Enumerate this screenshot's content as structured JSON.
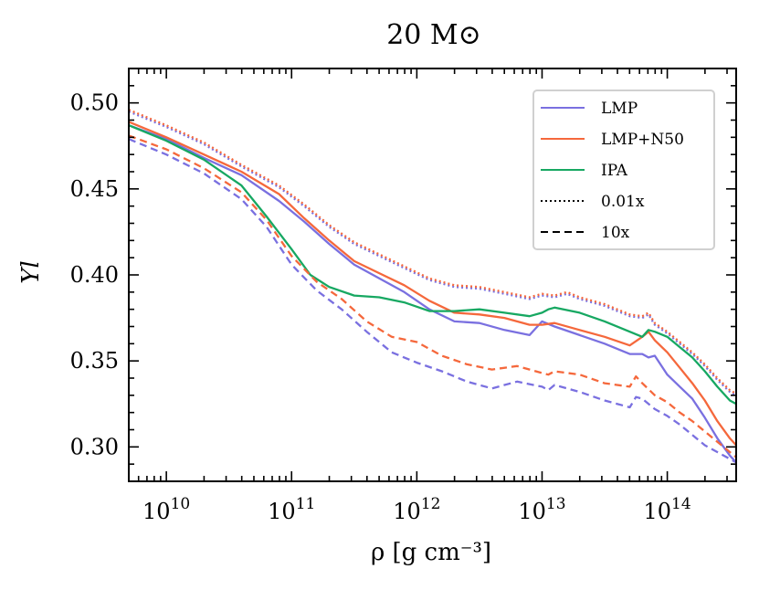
{
  "chart_data": {
    "type": "line",
    "title": "20 M⊙",
    "xlabel": "ρ [g cm⁻³]",
    "ylabel": "Yl",
    "x_scale": "log",
    "xlim_log10": [
      9.7,
      14.55
    ],
    "ylim": [
      0.28,
      0.52
    ],
    "x_tick_labels": [
      {
        "log10": 10,
        "base": "10",
        "exp": "10"
      },
      {
        "log10": 11,
        "base": "10",
        "exp": "11"
      },
      {
        "log10": 12,
        "base": "10",
        "exp": "12"
      },
      {
        "log10": 13,
        "base": "10",
        "exp": "13"
      },
      {
        "log10": 14,
        "base": "10",
        "exp": "14"
      }
    ],
    "y_ticks": [
      0.3,
      0.35,
      0.4,
      0.45,
      0.5
    ],
    "y_tick_labels": [
      "0.30",
      "0.35",
      "0.40",
      "0.45",
      "0.50"
    ],
    "grid": false,
    "legend": {
      "position": "top-right",
      "entries": [
        {
          "label": "LMP",
          "color": "#7a70e0",
          "dash": "solid"
        },
        {
          "label": "LMP+N50",
          "color": "#f5683c",
          "dash": "solid"
        },
        {
          "label": "IPA",
          "color": "#17a862",
          "dash": "solid"
        },
        {
          "label": "0.01x",
          "color": "#000000",
          "dash": "dotted"
        },
        {
          "label": "10x",
          "color": "#000000",
          "dash": "dashed"
        }
      ]
    },
    "series": [
      {
        "model": "LMP",
        "variant": "1x",
        "color": "#7a70e0",
        "dash": "solid",
        "log10_x": [
          9.7,
          10.0,
          10.3,
          10.6,
          10.9,
          11.1,
          11.3,
          11.5,
          11.7,
          11.9,
          12.1,
          12.3,
          12.5,
          12.7,
          12.9,
          13.0,
          13.1,
          13.3,
          13.5,
          13.7,
          13.8,
          13.85,
          13.9,
          14.0,
          14.1,
          14.2,
          14.3,
          14.4,
          14.5,
          14.55
        ],
        "y": [
          0.487,
          0.479,
          0.468,
          0.458,
          0.443,
          0.431,
          0.418,
          0.406,
          0.398,
          0.39,
          0.38,
          0.373,
          0.372,
          0.368,
          0.365,
          0.373,
          0.37,
          0.365,
          0.36,
          0.354,
          0.354,
          0.352,
          0.353,
          0.342,
          0.335,
          0.328,
          0.317,
          0.305,
          0.295,
          0.291
        ]
      },
      {
        "model": "LMP+N50",
        "variant": "1x",
        "color": "#f5683c",
        "dash": "solid",
        "log10_x": [
          9.7,
          10.0,
          10.3,
          10.6,
          10.9,
          11.1,
          11.3,
          11.5,
          11.7,
          11.9,
          12.1,
          12.3,
          12.5,
          12.7,
          12.9,
          13.0,
          13.1,
          13.3,
          13.5,
          13.7,
          13.8,
          13.85,
          13.9,
          14.0,
          14.1,
          14.2,
          14.3,
          14.4,
          14.5,
          14.55
        ],
        "y": [
          0.489,
          0.48,
          0.47,
          0.46,
          0.447,
          0.433,
          0.42,
          0.408,
          0.401,
          0.394,
          0.385,
          0.378,
          0.377,
          0.375,
          0.371,
          0.371,
          0.372,
          0.368,
          0.364,
          0.359,
          0.364,
          0.367,
          0.362,
          0.355,
          0.346,
          0.337,
          0.327,
          0.315,
          0.305,
          0.301
        ]
      },
      {
        "model": "IPA",
        "variant": "1x",
        "color": "#17a862",
        "dash": "solid",
        "log10_x": [
          9.7,
          10.0,
          10.3,
          10.6,
          10.8,
          11.0,
          11.15,
          11.3,
          11.5,
          11.7,
          11.9,
          12.1,
          12.3,
          12.5,
          12.7,
          12.9,
          13.0,
          13.05,
          13.1,
          13.3,
          13.5,
          13.7,
          13.8,
          13.85,
          13.9,
          14.0,
          14.1,
          14.2,
          14.3,
          14.4,
          14.5,
          14.55
        ],
        "y": [
          0.487,
          0.478,
          0.467,
          0.452,
          0.434,
          0.415,
          0.4,
          0.393,
          0.388,
          0.387,
          0.384,
          0.379,
          0.379,
          0.38,
          0.378,
          0.376,
          0.378,
          0.38,
          0.381,
          0.378,
          0.373,
          0.367,
          0.364,
          0.368,
          0.367,
          0.364,
          0.358,
          0.352,
          0.344,
          0.335,
          0.327,
          0.325
        ]
      },
      {
        "model": "LMP",
        "variant": "0.01x",
        "color": "#7a70e0",
        "dash": "dotted",
        "log10_x": [
          9.7,
          10.0,
          10.3,
          10.6,
          10.9,
          11.1,
          11.3,
          11.5,
          11.7,
          11.9,
          12.1,
          12.3,
          12.5,
          12.7,
          12.9,
          13.0,
          13.1,
          13.2,
          13.3,
          13.5,
          13.7,
          13.8,
          13.85,
          13.9,
          14.0,
          14.1,
          14.2,
          14.3,
          14.4,
          14.5,
          14.55
        ],
        "y": [
          0.495,
          0.486,
          0.476,
          0.463,
          0.451,
          0.44,
          0.428,
          0.418,
          0.411,
          0.404,
          0.397,
          0.393,
          0.392,
          0.389,
          0.386,
          0.388,
          0.387,
          0.389,
          0.386,
          0.382,
          0.376,
          0.375,
          0.377,
          0.371,
          0.366,
          0.36,
          0.354,
          0.347,
          0.339,
          0.332,
          0.33
        ]
      },
      {
        "model": "LMP+N50",
        "variant": "0.01x",
        "color": "#f5683c",
        "dash": "dotted",
        "log10_x": [
          9.7,
          10.0,
          10.3,
          10.6,
          10.9,
          11.1,
          11.3,
          11.5,
          11.7,
          11.9,
          12.1,
          12.3,
          12.5,
          12.7,
          12.9,
          13.0,
          13.1,
          13.2,
          13.3,
          13.5,
          13.7,
          13.8,
          13.85,
          13.9,
          14.0,
          14.1,
          14.2,
          14.3,
          14.4,
          14.5,
          14.55
        ],
        "y": [
          0.496,
          0.487,
          0.477,
          0.464,
          0.452,
          0.441,
          0.429,
          0.419,
          0.412,
          0.405,
          0.398,
          0.394,
          0.393,
          0.39,
          0.387,
          0.389,
          0.388,
          0.39,
          0.387,
          0.383,
          0.377,
          0.376,
          0.378,
          0.372,
          0.367,
          0.361,
          0.355,
          0.348,
          0.34,
          0.333,
          0.331
        ]
      },
      {
        "model": "LMP",
        "variant": "10x",
        "color": "#7a70e0",
        "dash": "dashed",
        "log10_x": [
          9.7,
          10.0,
          10.3,
          10.6,
          10.8,
          11.0,
          11.2,
          11.4,
          11.6,
          11.8,
          12.0,
          12.2,
          12.4,
          12.6,
          12.8,
          13.0,
          13.05,
          13.1,
          13.3,
          13.5,
          13.7,
          13.75,
          13.8,
          13.9,
          14.0,
          14.1,
          14.2,
          14.3,
          14.4,
          14.5,
          14.55
        ],
        "y": [
          0.479,
          0.47,
          0.459,
          0.444,
          0.428,
          0.406,
          0.391,
          0.38,
          0.367,
          0.355,
          0.349,
          0.344,
          0.338,
          0.334,
          0.338,
          0.335,
          0.333,
          0.336,
          0.332,
          0.327,
          0.323,
          0.329,
          0.328,
          0.322,
          0.318,
          0.313,
          0.307,
          0.301,
          0.297,
          0.293,
          0.291
        ]
      },
      {
        "model": "LMP+N50",
        "variant": "10x",
        "color": "#f5683c",
        "dash": "dashed",
        "log10_x": [
          9.7,
          10.0,
          10.3,
          10.6,
          10.8,
          11.0,
          11.2,
          11.4,
          11.6,
          11.8,
          12.0,
          12.2,
          12.4,
          12.6,
          12.8,
          13.0,
          13.05,
          13.1,
          13.3,
          13.5,
          13.7,
          13.75,
          13.8,
          13.9,
          14.0,
          14.1,
          14.2,
          14.3,
          14.4,
          14.5,
          14.55
        ],
        "y": [
          0.481,
          0.473,
          0.462,
          0.448,
          0.432,
          0.411,
          0.396,
          0.386,
          0.373,
          0.364,
          0.361,
          0.353,
          0.348,
          0.345,
          0.347,
          0.343,
          0.342,
          0.344,
          0.342,
          0.337,
          0.335,
          0.341,
          0.337,
          0.33,
          0.326,
          0.32,
          0.315,
          0.309,
          0.303,
          0.297,
          0.294
        ]
      }
    ]
  }
}
